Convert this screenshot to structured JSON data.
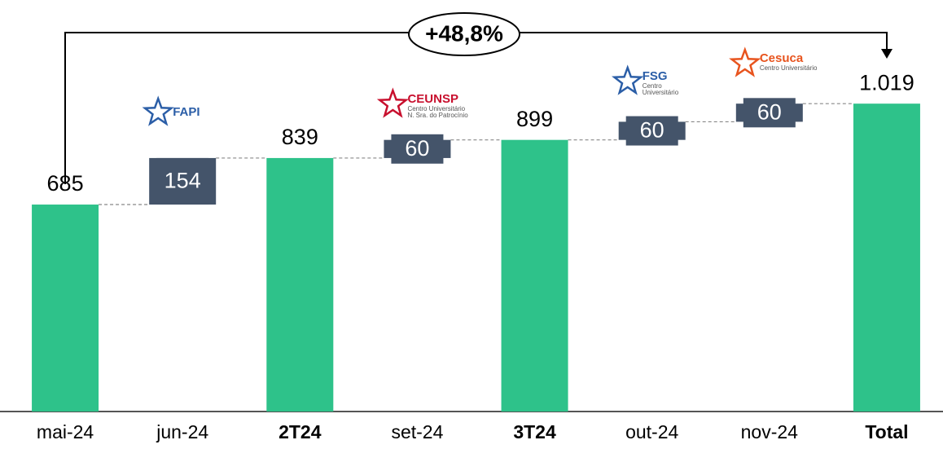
{
  "chart_data": {
    "type": "waterfall",
    "categories": [
      "mai-24",
      "jun-24",
      "2T24",
      "set-24",
      "3T24",
      "out-24",
      "nov-24",
      "Total"
    ],
    "values": [
      685,
      154,
      839,
      60,
      899,
      60,
      60,
      1019
    ],
    "value_labels": [
      "685",
      "154",
      "839",
      "60",
      "899",
      "60",
      "60",
      "1.019"
    ],
    "measures": [
      "absolute",
      "relative",
      "total",
      "relative",
      "total",
      "relative",
      "relative",
      "total"
    ],
    "bold_categories": [
      false,
      false,
      true,
      false,
      true,
      false,
      false,
      true
    ],
    "total_color": "#2ec28a",
    "increase_color": "#44546a",
    "ylim": [
      0,
      1300
    ],
    "growth_annotation": "+48,8%",
    "logos": [
      {
        "category": 1,
        "name": "FAPI",
        "lines": [],
        "color": "#2b5ea7"
      },
      {
        "category": 3,
        "name": "CEUNSP",
        "lines": [
          "Centro Universitário",
          "N. Sra. do Patrocínio"
        ],
        "color": "#c8102e"
      },
      {
        "category": 5,
        "name": "FSG",
        "lines": [
          "Centro",
          "Universitário"
        ],
        "color": "#2b5ea7"
      },
      {
        "category": 6,
        "name": "Cesuca",
        "lines": [
          "Centro Universitário"
        ],
        "color": "#e8541e"
      }
    ]
  }
}
